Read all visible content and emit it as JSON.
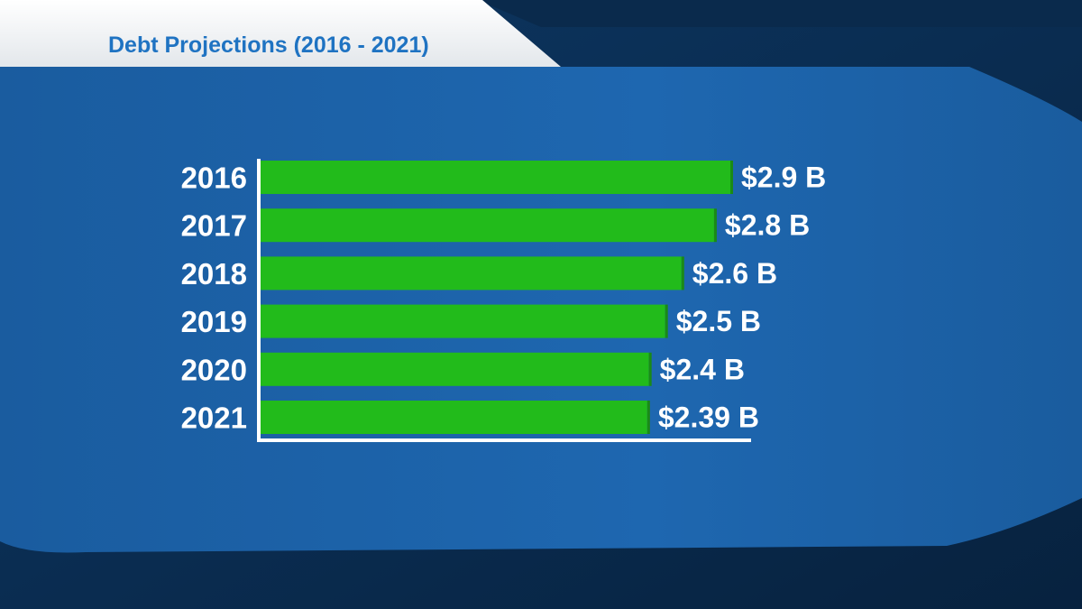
{
  "chart_data": {
    "type": "bar",
    "orientation": "horizontal",
    "title": "Debt Projections (2016 - 2021)",
    "categories": [
      "2016",
      "2017",
      "2018",
      "2019",
      "2020",
      "2021"
    ],
    "values": [
      2.9,
      2.8,
      2.6,
      2.5,
      2.4,
      2.39
    ],
    "data_labels": [
      "$2.9 B",
      "$2.8 B",
      "$2.6 B",
      "$2.5 B",
      "$2.4 B",
      "$2.39 B"
    ],
    "unit": "B",
    "xlabel": "",
    "ylabel": "",
    "grid": false,
    "legend": "none"
  },
  "colors": {
    "bar": "#22bb1b",
    "bar_shadow": "#1a8a16",
    "panel": "#1b5fa5",
    "background": "#0c2f55",
    "title_text": "#1f73c2",
    "title_banner": "#f1f3f5",
    "axis": "#ffffff"
  }
}
